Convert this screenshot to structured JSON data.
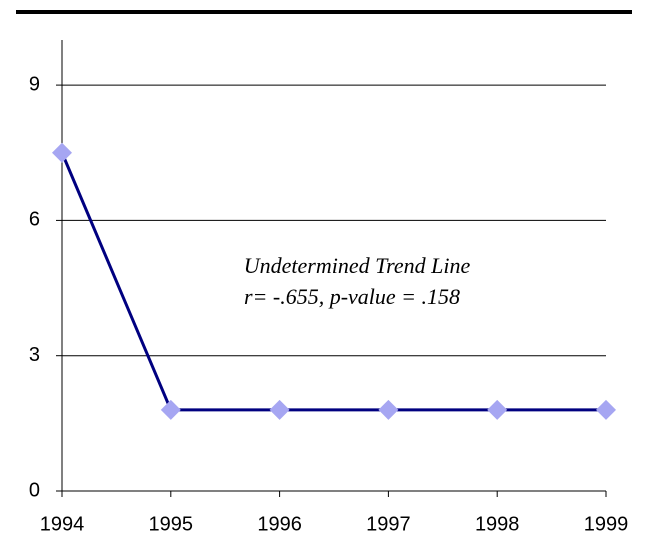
{
  "chart_data": {
    "type": "line",
    "x": [
      1994,
      1995,
      1996,
      1997,
      1998,
      1999
    ],
    "series": [
      {
        "color": "#000080",
        "marker_color": "#a6a6f2",
        "values": [
          7.5,
          1.8,
          1.8,
          1.8,
          1.8,
          1.8
        ]
      }
    ],
    "xlim": [
      1994,
      1999
    ],
    "xticks": [
      1994,
      1995,
      1996,
      1997,
      1998,
      1999
    ],
    "ylim": [
      0,
      10
    ],
    "yticks": [
      0,
      3,
      6,
      9
    ],
    "grid": true,
    "annotation": [
      "Undetermined Trend Line",
      "r= -.655, p-value = .158"
    ]
  }
}
